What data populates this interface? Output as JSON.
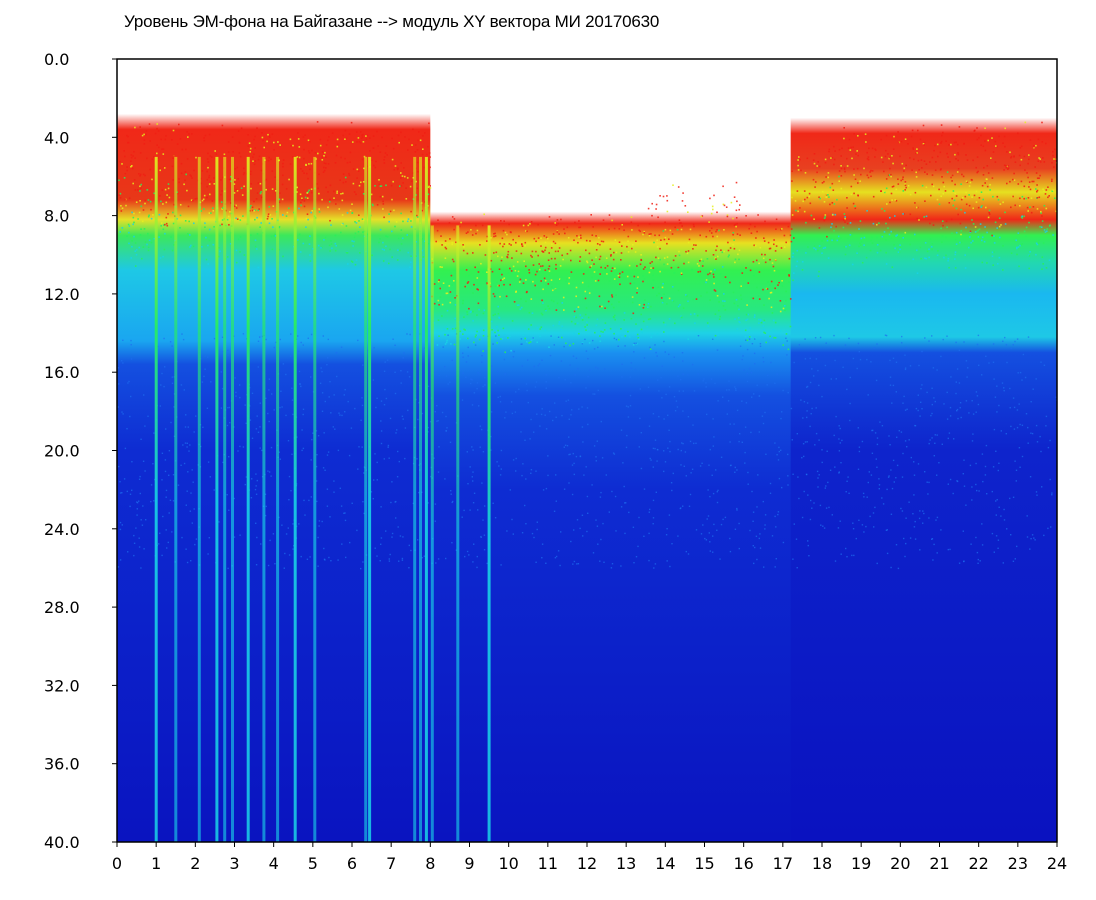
{
  "title": "Уровень ЭМ-фона на Байгазане   -->  модуль XY вектора МИ  20170630",
  "colors": {
    "background_white": "#ffffff",
    "low_blue": "#0a14c8",
    "mid_blue": "#1e6ef0",
    "cyan": "#19d2e6",
    "green": "#28f05a",
    "yellow": "#e6f01e",
    "red": "#f01e14",
    "frame": "#000000"
  },
  "chart_data": {
    "type": "heatmap",
    "title": "Уровень ЭМ-фона на Байгазане   -->  модуль XY вектора МИ  20170630",
    "xlabel": "",
    "ylabel": "",
    "x_range": [
      0,
      24
    ],
    "y_range": [
      0,
      40
    ],
    "y_axis_inverted": true,
    "x_ticks": [
      "0",
      "1",
      "2",
      "3",
      "4",
      "5",
      "6",
      "7",
      "8",
      "9",
      "10",
      "11",
      "12",
      "13",
      "14",
      "15",
      "16",
      "17",
      "18",
      "19",
      "20",
      "21",
      "22",
      "23",
      "24"
    ],
    "y_ticks": [
      "0.0",
      "4.0",
      "8.0",
      "12.0",
      "16.0",
      "20.0",
      "24.0",
      "28.0",
      "32.0",
      "36.0",
      "40.0"
    ],
    "grid": false,
    "legend": "none",
    "colormap": [
      "#0a14c8",
      "#1e6ef0",
      "#19d2e6",
      "#28f05a",
      "#e6f01e",
      "#f01e14"
    ],
    "bands": [
      {
        "hour_start": 0,
        "hour_end": 8,
        "red_top": 3.0,
        "red_bottom": 8.0
      },
      {
        "hour_start": 8,
        "hour_end": 17,
        "red_top": 8.0,
        "red_bottom": 9.0
      },
      {
        "hour_start": 17,
        "hour_end": 24,
        "red_top": 3.5,
        "red_bottom": 8.5
      }
    ],
    "green_band": [
      8.5,
      13.0
    ],
    "cyan_band": [
      12.0,
      15.0
    ],
    "vertical_streaks_hours": [
      1.0,
      1.5,
      2.1,
      2.55,
      2.75,
      2.95,
      3.35,
      3.75,
      4.1,
      4.55,
      5.05,
      6.35,
      6.45,
      7.6,
      7.75,
      7.9,
      8.05,
      8.7,
      9.5
    ]
  }
}
